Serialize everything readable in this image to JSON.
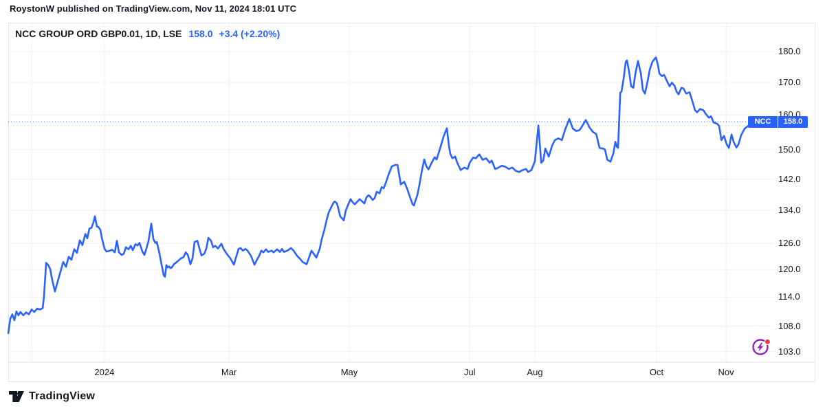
{
  "attribution": {
    "text": "RoystonW published on TradingView.com, Nov 11, 2024 18:01 UTC"
  },
  "header": {
    "symbol_title": "NCC GROUP ORD GBP0.01, 1D, LSE",
    "price": "158.0",
    "change": "+3.4 (+2.20%)"
  },
  "price_label": {
    "ticker": "NCC",
    "value": "158.0"
  },
  "footer": {
    "brand": "TradingView"
  },
  "colors": {
    "accent": "#2962FF",
    "text": "#131722",
    "grid": "#eef0f5",
    "border": "#e0e3eb",
    "badge_blue": "#2962FF",
    "marker_purple": "#8e24b8",
    "marker_red": "#f23645"
  },
  "chart_data": {
    "type": "line",
    "title": "NCC GROUP ORD GBP0.01, 1D, LSE",
    "symbol": "NCC",
    "interval": "1D",
    "exchange": "LSE",
    "last_price": 158.0,
    "change": 3.4,
    "change_pct": 2.2,
    "scale": "log",
    "legend_position": "top-left",
    "grid": true,
    "ylim": [
      101,
      190
    ],
    "x_unit": "days since 2023-11-14",
    "x_range": [
      0,
      366.1
    ],
    "y_axis": {
      "ticks": [
        {
          "label": "180.0",
          "value": 180.0
        },
        {
          "label": "170.0",
          "value": 170.0
        },
        {
          "label": "160.0",
          "value": 160.0
        },
        {
          "label": "150.0",
          "value": 150.0
        },
        {
          "label": "142.0",
          "value": 142.0
        },
        {
          "label": "134.0",
          "value": 134.0
        },
        {
          "label": "126.0",
          "value": 126.0
        },
        {
          "label": "120.0",
          "value": 120.0
        },
        {
          "label": "114.0",
          "value": 114.0
        },
        {
          "label": "108.0",
          "value": 108.0
        },
        {
          "label": "103.0",
          "value": 103.0
        }
      ]
    },
    "x_axis": {
      "ticks": [
        {
          "label": "2024",
          "day": 47.2
        },
        {
          "label": "Mar",
          "day": 108.3
        },
        {
          "label": "May",
          "day": 167.3
        },
        {
          "label": "Jul",
          "day": 226.4
        },
        {
          "label": "Aug",
          "day": 258.4
        },
        {
          "label": "Oct",
          "day": 318.1
        },
        {
          "label": "Nov",
          "day": 352.2
        }
      ],
      "extra_gridline_days": [
        11.5
      ]
    },
    "points": [
      [
        0,
        106.6
      ],
      [
        1,
        109.5
      ],
      [
        2,
        110.4
      ],
      [
        3,
        109.2
      ],
      [
        4,
        111.0
      ],
      [
        5,
        110.2
      ],
      [
        6,
        110.9
      ],
      [
        7.4,
        110.2
      ],
      [
        8.8,
        110.8
      ],
      [
        10.1,
        110.4
      ],
      [
        11.5,
        111.4
      ],
      [
        12.8,
        110.9
      ],
      [
        14.2,
        111.6
      ],
      [
        15.5,
        111.4
      ],
      [
        16.9,
        111.7
      ],
      [
        17.5,
        114.0
      ],
      [
        18.6,
        121.5
      ],
      [
        19.6,
        121.0
      ],
      [
        20.6,
        120.1
      ],
      [
        21.6,
        117.7
      ],
      [
        22.9,
        115.2
      ],
      [
        24.3,
        117.4
      ],
      [
        25.6,
        119.5
      ],
      [
        27.0,
        121.7
      ],
      [
        28.3,
        120.6
      ],
      [
        29.7,
        122.9
      ],
      [
        31.0,
        122.2
      ],
      [
        32.4,
        124.6
      ],
      [
        33.7,
        123.8
      ],
      [
        35.1,
        126.7
      ],
      [
        36.4,
        125.6
      ],
      [
        37.8,
        128.2
      ],
      [
        38.8,
        127.2
      ],
      [
        39.8,
        129.5
      ],
      [
        40.8,
        129.7
      ],
      [
        41.8,
        131.0
      ],
      [
        42.5,
        132.5
      ],
      [
        43.5,
        130.0
      ],
      [
        44.2,
        129.9
      ],
      [
        45.2,
        129.2
      ],
      [
        45.9,
        127.3
      ],
      [
        47.2,
        124.8
      ],
      [
        48.2,
        124.1
      ],
      [
        49.3,
        124.2
      ],
      [
        51.0,
        124.5
      ],
      [
        52.3,
        123.9
      ],
      [
        53.3,
        126.6
      ],
      [
        54.3,
        123.9
      ],
      [
        55.7,
        123.3
      ],
      [
        56.7,
        123.6
      ],
      [
        57.7,
        125.1
      ],
      [
        59.0,
        124.6
      ],
      [
        60.1,
        125.4
      ],
      [
        61.1,
        124.4
      ],
      [
        62.4,
        125.8
      ],
      [
        63.4,
        125.5
      ],
      [
        64.4,
        126.1
      ],
      [
        65.8,
        124.1
      ],
      [
        66.8,
        123.3
      ],
      [
        67.8,
        124.8
      ],
      [
        68.8,
        126.6
      ],
      [
        70.2,
        130.7
      ],
      [
        71.2,
        127.0
      ],
      [
        72.2,
        126.1
      ],
      [
        72.9,
        126.3
      ],
      [
        74.2,
        123.6
      ],
      [
        75.2,
        121.2
      ],
      [
        76.3,
        118.7
      ],
      [
        76.9,
        118.4
      ],
      [
        77.6,
        121.0
      ],
      [
        78.3,
        120.5
      ],
      [
        78.9,
        120.7
      ],
      [
        79.6,
        120.3
      ],
      [
        80.3,
        120.5
      ],
      [
        81.3,
        121.2
      ],
      [
        82.7,
        121.7
      ],
      [
        83.7,
        122.1
      ],
      [
        84.7,
        122.5
      ],
      [
        86.0,
        122.8
      ],
      [
        87.1,
        123.9
      ],
      [
        88.1,
        123.3
      ],
      [
        89.4,
        121.2
      ],
      [
        90.4,
        122.5
      ],
      [
        91.4,
        126.3
      ],
      [
        92.8,
        126.6
      ],
      [
        93.8,
        124.8
      ],
      [
        94.8,
        123.2
      ],
      [
        96.2,
        123.6
      ],
      [
        97.2,
        124.8
      ],
      [
        98.2,
        127.3
      ],
      [
        99.5,
        126.6
      ],
      [
        100.5,
        125.1
      ],
      [
        101.6,
        125.4
      ],
      [
        102.9,
        124.8
      ],
      [
        104.6,
        125.9
      ],
      [
        105.6,
        124.7
      ],
      [
        107.3,
        123.5
      ],
      [
        109.0,
        122.5
      ],
      [
        110.7,
        121.1
      ],
      [
        111.3,
        122.0
      ],
      [
        113.0,
        124.7
      ],
      [
        114.0,
        124.9
      ],
      [
        115.1,
        124.3
      ],
      [
        116.4,
        124.7
      ],
      [
        117.4,
        124.3
      ],
      [
        119.1,
        123.1
      ],
      [
        120.8,
        121.1
      ],
      [
        121.8,
        122.0
      ],
      [
        123.1,
        123.1
      ],
      [
        124.2,
        124.3
      ],
      [
        125.2,
        123.9
      ],
      [
        126.5,
        124.6
      ],
      [
        127.5,
        124.0
      ],
      [
        129.2,
        124.3
      ],
      [
        130.2,
        123.9
      ],
      [
        131.9,
        124.6
      ],
      [
        133.3,
        124.0
      ],
      [
        134.3,
        124.7
      ],
      [
        135.3,
        124.0
      ],
      [
        137.0,
        124.3
      ],
      [
        138.7,
        124.9
      ],
      [
        140.0,
        124.3
      ],
      [
        141.7,
        123.1
      ],
      [
        143.4,
        122.3
      ],
      [
        144.4,
        121.7
      ],
      [
        146.4,
        121.2
      ],
      [
        148.8,
        124.3
      ],
      [
        151.2,
        122.7
      ],
      [
        152.8,
        124.7
      ],
      [
        153.8,
        126.9
      ],
      [
        155.2,
        129.4
      ],
      [
        156.2,
        131.6
      ],
      [
        157.2,
        133.4
      ],
      [
        158.5,
        134.8
      ],
      [
        159.6,
        135.9
      ],
      [
        160.2,
        136.2
      ],
      [
        161.3,
        135.7
      ],
      [
        162.9,
        132.5
      ],
      [
        164.6,
        131.5
      ],
      [
        165.6,
        133.9
      ],
      [
        167.0,
        135.7
      ],
      [
        168.0,
        136.8
      ],
      [
        169.0,
        136.0
      ],
      [
        170.0,
        135.5
      ],
      [
        171.7,
        136.4
      ],
      [
        172.4,
        136.8
      ],
      [
        173.7,
        136.2
      ],
      [
        174.7,
        135.7
      ],
      [
        175.8,
        137.3
      ],
      [
        176.8,
        137.8
      ],
      [
        177.5,
        137.5
      ],
      [
        178.8,
        136.6
      ],
      [
        179.8,
        137.1
      ],
      [
        180.8,
        138.7
      ],
      [
        182.2,
        138.3
      ],
      [
        183.2,
        139.9
      ],
      [
        184.2,
        139.6
      ],
      [
        185.5,
        141.4
      ],
      [
        186.6,
        143.2
      ],
      [
        188.2,
        145.4
      ],
      [
        189.9,
        145.8
      ],
      [
        191.0,
        145.8
      ],
      [
        192.6,
        140.6
      ],
      [
        194.3,
        141.3
      ],
      [
        195.7,
        139.5
      ],
      [
        197.0,
        137.5
      ],
      [
        198.4,
        135.5
      ],
      [
        199.1,
        135.2
      ],
      [
        199.4,
        135.8
      ],
      [
        200.7,
        137.8
      ],
      [
        201.8,
        140.6
      ],
      [
        202.8,
        143.8
      ],
      [
        204.1,
        147.3
      ],
      [
        205.1,
        145.5
      ],
      [
        206.2,
        144.6
      ],
      [
        207.5,
        146.1
      ],
      [
        209.2,
        147.9
      ],
      [
        210.2,
        147.3
      ],
      [
        211.9,
        150.4
      ],
      [
        213.6,
        153.7
      ],
      [
        215.2,
        156.1
      ],
      [
        216.3,
        150.8
      ],
      [
        216.9,
        148.9
      ],
      [
        217.9,
        147.6
      ],
      [
        219.3,
        148.1
      ],
      [
        220.3,
        146.4
      ],
      [
        222.0,
        144.4
      ],
      [
        223.7,
        145.1
      ],
      [
        225.4,
        144.7
      ],
      [
        226.4,
        146.4
      ],
      [
        228.1,
        147.8
      ],
      [
        229.4,
        147.6
      ],
      [
        231.1,
        148.7
      ],
      [
        232.8,
        147.2
      ],
      [
        234.5,
        147.6
      ],
      [
        236.2,
        146.4
      ],
      [
        237.2,
        147.0
      ],
      [
        238.9,
        144.7
      ],
      [
        240.6,
        145.1
      ],
      [
        242.2,
        145.6
      ],
      [
        243.9,
        145.3
      ],
      [
        245.6,
        144.7
      ],
      [
        247.3,
        145.1
      ],
      [
        249.0,
        144.2
      ],
      [
        250.7,
        143.9
      ],
      [
        252.4,
        144.4
      ],
      [
        254.0,
        144.7
      ],
      [
        255.1,
        143.9
      ],
      [
        256.7,
        144.4
      ],
      [
        258.4,
        146.8
      ],
      [
        260.1,
        156.9
      ],
      [
        261.5,
        146.4
      ],
      [
        262.5,
        147.0
      ],
      [
        263.5,
        150.3
      ],
      [
        265.2,
        148.1
      ],
      [
        266.9,
        151.2
      ],
      [
        268.2,
        152.7
      ],
      [
        269.9,
        153.2
      ],
      [
        271.6,
        152.7
      ],
      [
        273.3,
        155.8
      ],
      [
        275.3,
        158.8
      ],
      [
        277.0,
        156.0
      ],
      [
        278.7,
        155.3
      ],
      [
        280.4,
        155.6
      ],
      [
        281.7,
        156.8
      ],
      [
        283.4,
        158.5
      ],
      [
        285.1,
        156.4
      ],
      [
        286.8,
        155.1
      ],
      [
        288.5,
        154.4
      ],
      [
        290.1,
        150.5
      ],
      [
        291.8,
        150.3
      ],
      [
        292.8,
        150.0
      ],
      [
        293.9,
        147.2
      ],
      [
        295.5,
        146.7
      ],
      [
        296.9,
        149.0
      ],
      [
        297.9,
        152.2
      ],
      [
        298.6,
        150.8
      ],
      [
        299.2,
        150.5
      ],
      [
        300.3,
        166.8
      ],
      [
        300.9,
        167.1
      ],
      [
        301.9,
        171.1
      ],
      [
        303.0,
        176.7
      ],
      [
        303.6,
        177.1
      ],
      [
        304.6,
        173.5
      ],
      [
        305.6,
        168.8
      ],
      [
        306.7,
        168.3
      ],
      [
        307.7,
        172.8
      ],
      [
        309.0,
        176.9
      ],
      [
        310.4,
        172.8
      ],
      [
        311.4,
        167.6
      ],
      [
        312.4,
        166.5
      ],
      [
        313.7,
        170.4
      ],
      [
        314.8,
        174.2
      ],
      [
        316.1,
        176.7
      ],
      [
        317.5,
        177.9
      ],
      [
        317.8,
        178.1
      ],
      [
        318.8,
        175.5
      ],
      [
        319.5,
        172.8
      ],
      [
        320.8,
        172.0
      ],
      [
        321.8,
        172.4
      ],
      [
        323.2,
        170.4
      ],
      [
        324.5,
        168.8
      ],
      [
        325.6,
        169.9
      ],
      [
        326.9,
        169.0
      ],
      [
        327.9,
        167.1
      ],
      [
        328.9,
        166.3
      ],
      [
        330.3,
        168.3
      ],
      [
        331.3,
        168.1
      ],
      [
        332.6,
        166.5
      ],
      [
        334.3,
        166.9
      ],
      [
        335.7,
        164.1
      ],
      [
        337.0,
        161.4
      ],
      [
        338.0,
        160.8
      ],
      [
        339.4,
        161.8
      ],
      [
        341.1,
        161.4
      ],
      [
        342.4,
        160.2
      ],
      [
        343.8,
        159.2
      ],
      [
        344.8,
        159.6
      ],
      [
        346.1,
        157.8
      ],
      [
        347.8,
        157.4
      ],
      [
        348.8,
        156.8
      ],
      [
        349.9,
        152.7
      ],
      [
        351.2,
        153.9
      ],
      [
        352.5,
        151.5
      ],
      [
        353.6,
        150.5
      ],
      [
        354.9,
        154.3
      ],
      [
        355.9,
        152.2
      ],
      [
        357.3,
        150.6
      ],
      [
        358.3,
        151.5
      ],
      [
        359.6,
        154.1
      ],
      [
        361.3,
        156.0
      ],
      [
        362.7,
        156.6
      ],
      [
        364.4,
        157.4
      ],
      [
        366.1,
        158.0
      ]
    ]
  }
}
